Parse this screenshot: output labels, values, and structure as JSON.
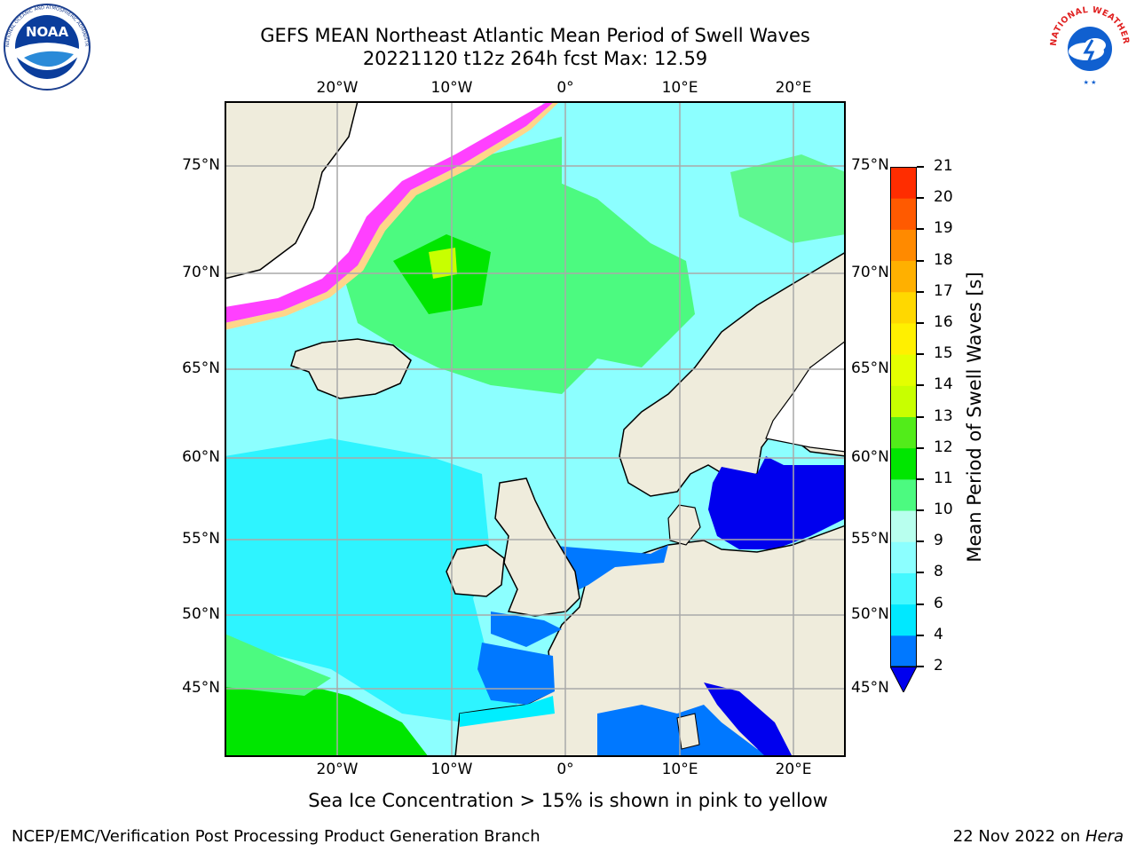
{
  "header": {
    "title_line1": "GEFS MEAN Northeast Atlantic Mean Period of Swell Waves",
    "title_line2": "20221120 t12z 264h fcst   Max: 12.59"
  },
  "logos": {
    "left": {
      "name": "NOAA",
      "ring_text": "NATIONAL OCEANIC AND ATMOSPHERIC ADMINISTRATION · U.S. DEPARTMENT OF COMMERCE"
    },
    "right": {
      "name": "NATIONAL WEATHER SERVICE"
    }
  },
  "map": {
    "lon_labels": [
      "20°W",
      "10°W",
      "0°",
      "10°E",
      "20°E"
    ],
    "lat_labels": [
      "75°N",
      "70°N",
      "65°N",
      "60°N",
      "55°N",
      "50°N",
      "45°N"
    ],
    "colors": {
      "ocean_light": "#8cffff",
      "ocean_cyan": "#00eeff",
      "swell_9": "#4dff80",
      "swell_10": "#00e600",
      "swell_12": "#c8ff00",
      "shallow_blue": "#0070ff",
      "deep_blue": "#0000ee",
      "land": "#efecdc",
      "ice_pink": "#ff40ff",
      "ice_yellow": "#ffe080",
      "grid": "#a9a9a9"
    }
  },
  "colorbar": {
    "label": "Mean Period of Swell Waves [s]",
    "ticks": [
      "2",
      "4",
      "6",
      "8",
      "9",
      "10",
      "11",
      "12",
      "13",
      "14",
      "15",
      "16",
      "17",
      "18",
      "19",
      "20",
      "21"
    ],
    "colors": [
      "#0078ff",
      "#00e8ff",
      "#44f8ff",
      "#8cffff",
      "#b8ffee",
      "#4cfa80",
      "#00e600",
      "#52ec1a",
      "#c8ff00",
      "#e4ff00",
      "#fff000",
      "#ffd800",
      "#ffb000",
      "#ff8a00",
      "#ff5a00",
      "#ff2d00"
    ]
  },
  "notes": {
    "ice": "Sea Ice Concentration > 15% is shown in pink to yellow"
  },
  "footer": {
    "left": "NCEP/EMC/Verification Post Processing Product Generation Branch",
    "date": "22 Nov 2022 on",
    "host": "Hera"
  }
}
